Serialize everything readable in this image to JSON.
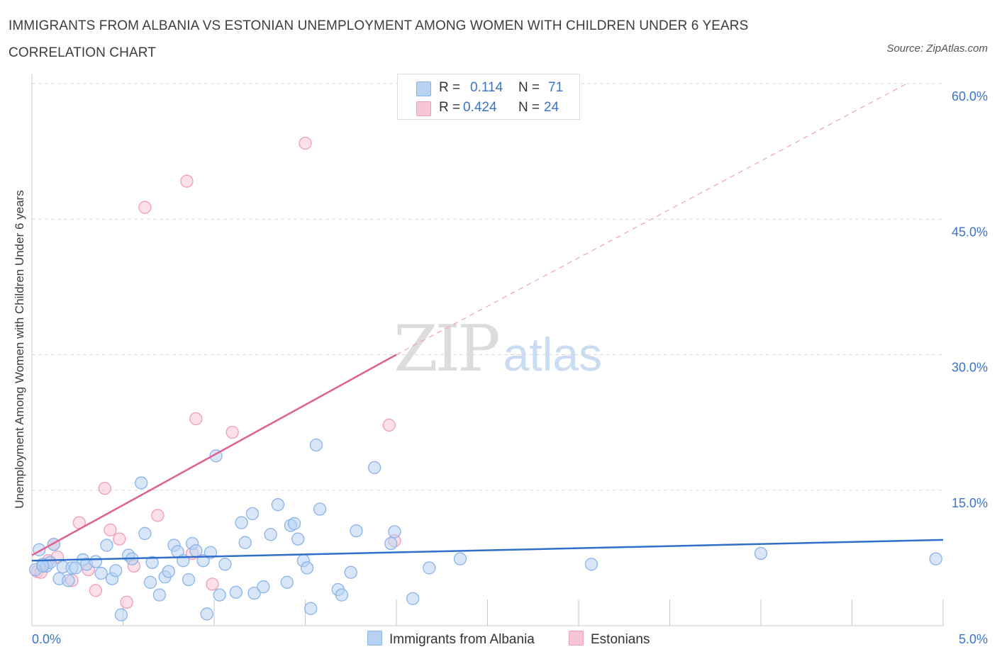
{
  "title": "IMMIGRANTS FROM ALBANIA VS ESTONIAN UNEMPLOYMENT AMONG WOMEN WITH CHILDREN UNDER 6 YEARS CORRELATION CHART",
  "source": "Source: ZipAtlas.com",
  "watermark": {
    "zip": "ZIP",
    "atlas": "atlas"
  },
  "legend": {
    "rows": [
      {
        "r_label": "R =",
        "r_value": "0.114",
        "n_label": "N =",
        "n_value": "71"
      },
      {
        "r_label": "R =",
        "r_value": "0.424",
        "n_label": "N =",
        "n_value": "24"
      }
    ]
  },
  "colors": {
    "albania_fill": "#b8d2f2",
    "albania_stroke": "#8ab4e8",
    "albania_line": "#2f6fc9",
    "estonian_fill": "#f7c6d6",
    "estonian_stroke": "#ef9db8",
    "estonian_line": "#e0608e",
    "grid": "#d8d8d8",
    "axis_text": "#3a74c9"
  },
  "chart_data": {
    "type": "scatter",
    "title": "IMMIGRANTS FROM ALBANIA VS ESTONIAN UNEMPLOYMENT AMONG WOMEN WITH CHILDREN UNDER 6 YEARS CORRELATION CHART",
    "xlabel": "",
    "ylabel": "Unemployment Among Women with Children Under 6 years",
    "xlim": [
      0,
      5
    ],
    "ylim": [
      0,
      60
    ],
    "x_tick_labels": [
      {
        "value": 0,
        "label": "0.0%"
      },
      {
        "value": 5,
        "label": "5.0%"
      }
    ],
    "y_tick_labels": [
      {
        "value": 15,
        "label": "15.0%"
      },
      {
        "value": 30,
        "label": "30.0%"
      },
      {
        "value": 45,
        "label": "45.0%"
      },
      {
        "value": 60,
        "label": "60.0%"
      }
    ],
    "grid": true,
    "legend_position": "top-center",
    "series": [
      {
        "name": "Immigrants from Albania",
        "R": 0.114,
        "N": 71,
        "trend": {
          "x": [
            0,
            5
          ],
          "y": [
            7.2,
            9.5
          ],
          "style": "solid"
        },
        "points": [
          [
            0.02,
            6.2
          ],
          [
            0.04,
            8.4
          ],
          [
            0.06,
            6.8
          ],
          [
            0.08,
            6.6
          ],
          [
            0.1,
            7.0
          ],
          [
            0.12,
            9.0
          ],
          [
            0.15,
            5.2
          ],
          [
            0.17,
            6.5
          ],
          [
            0.22,
            6.4
          ],
          [
            0.24,
            6.4
          ],
          [
            0.28,
            7.3
          ],
          [
            0.3,
            6.8
          ],
          [
            0.35,
            7.1
          ],
          [
            0.38,
            5.8
          ],
          [
            0.41,
            8.9
          ],
          [
            0.44,
            5.2
          ],
          [
            0.46,
            6.1
          ],
          [
            0.49,
            1.2
          ],
          [
            0.53,
            7.8
          ],
          [
            0.55,
            7.4
          ],
          [
            0.6,
            15.8
          ],
          [
            0.62,
            10.2
          ],
          [
            0.65,
            4.8
          ],
          [
            0.66,
            7.0
          ],
          [
            0.7,
            3.4
          ],
          [
            0.73,
            5.4
          ],
          [
            0.75,
            6.0
          ],
          [
            0.78,
            8.9
          ],
          [
            0.8,
            8.2
          ],
          [
            0.83,
            7.2
          ],
          [
            0.86,
            5.1
          ],
          [
            0.88,
            9.1
          ],
          [
            0.9,
            8.3
          ],
          [
            0.94,
            7.2
          ],
          [
            0.96,
            1.3
          ],
          [
            0.98,
            8.1
          ],
          [
            1.01,
            18.8
          ],
          [
            1.03,
            3.4
          ],
          [
            1.06,
            6.8
          ],
          [
            1.12,
            3.7
          ],
          [
            1.15,
            11.4
          ],
          [
            1.17,
            9.2
          ],
          [
            1.21,
            12.4
          ],
          [
            1.22,
            3.6
          ],
          [
            1.27,
            4.3
          ],
          [
            1.31,
            10.1
          ],
          [
            1.35,
            13.4
          ],
          [
            1.4,
            4.8
          ],
          [
            1.42,
            11.1
          ],
          [
            1.44,
            11.3
          ],
          [
            1.46,
            9.6
          ],
          [
            1.49,
            7.2
          ],
          [
            1.51,
            6.4
          ],
          [
            1.53,
            1.9
          ],
          [
            1.56,
            20.0
          ],
          [
            1.58,
            12.9
          ],
          [
            1.68,
            4.0
          ],
          [
            1.7,
            3.4
          ],
          [
            1.75,
            5.9
          ],
          [
            1.78,
            10.5
          ],
          [
            1.88,
            17.5
          ],
          [
            1.97,
            9.1
          ],
          [
            1.99,
            10.4
          ],
          [
            2.09,
            3.0
          ],
          [
            2.18,
            6.4
          ],
          [
            2.35,
            7.4
          ],
          [
            3.07,
            6.8
          ],
          [
            4.0,
            8.0
          ],
          [
            4.96,
            7.4
          ],
          [
            0.06,
            6.6
          ],
          [
            0.2,
            5.0
          ]
        ]
      },
      {
        "name": "Estonians",
        "R": 0.424,
        "N": 24,
        "trend": {
          "x": [
            0,
            2.0
          ],
          "y": [
            7.8,
            30.0
          ],
          "style": "solid",
          "extended_to": [
            4.8,
            60.0
          ],
          "extended_style": "dashed"
        },
        "points": [
          [
            0.03,
            6.0
          ],
          [
            0.05,
            5.9
          ],
          [
            0.09,
            7.2
          ],
          [
            0.12,
            9.0
          ],
          [
            0.14,
            7.6
          ],
          [
            0.22,
            5.0
          ],
          [
            0.26,
            11.4
          ],
          [
            0.31,
            6.2
          ],
          [
            0.35,
            3.9
          ],
          [
            0.4,
            15.2
          ],
          [
            0.43,
            10.6
          ],
          [
            0.48,
            9.6
          ],
          [
            0.52,
            2.6
          ],
          [
            0.56,
            6.6
          ],
          [
            0.62,
            46.3
          ],
          [
            0.69,
            12.2
          ],
          [
            0.85,
            49.2
          ],
          [
            0.88,
            8.0
          ],
          [
            0.9,
            22.9
          ],
          [
            0.99,
            4.6
          ],
          [
            1.1,
            21.4
          ],
          [
            1.5,
            53.4
          ],
          [
            1.96,
            22.2
          ],
          [
            1.99,
            9.4
          ]
        ]
      }
    ]
  }
}
